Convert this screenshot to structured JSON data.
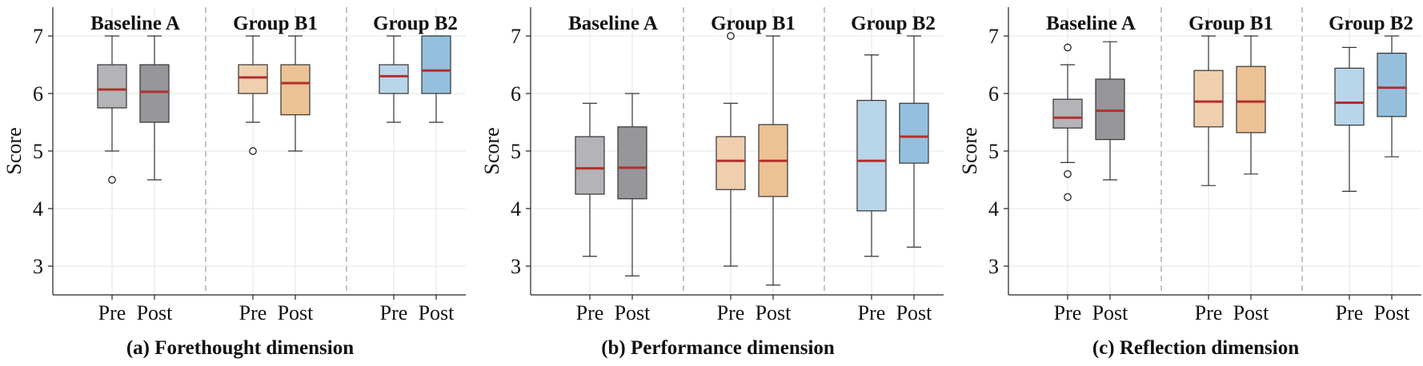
{
  "figure": {
    "subcaptions": [
      "(a) Forethought dimension",
      "(b) Performance dimension",
      "(c) Reflection dimension"
    ]
  },
  "colors": {
    "baseline_pre": "#b3b3b8",
    "baseline_post": "#96969b",
    "b1_pre": "#efcfae",
    "b1_post": "#ecc294",
    "b2_pre": "#b9d5ea",
    "b2_post": "#94c0de",
    "median": "#b2302c",
    "box_edge": "#333333",
    "divider": "#b5b5b5",
    "grid": "#e6e6e6"
  },
  "chart_data": [
    {
      "type": "box",
      "title": "(a) Forethought dimension",
      "ylabel": "Score",
      "ylim": [
        2.5,
        7.5
      ],
      "yticks": [
        3,
        4,
        5,
        6,
        7
      ],
      "grid": true,
      "groups": [
        "Baseline A",
        "Group B1",
        "Group B2"
      ],
      "categories": [
        "Pre",
        "Post"
      ],
      "boxes": [
        {
          "group": "Baseline A",
          "label": "Pre",
          "whislo": 5.0,
          "q1": 5.75,
          "med": 6.07,
          "q3": 6.5,
          "whishi": 7.0,
          "fliers": [
            4.5
          ]
        },
        {
          "group": "Baseline A",
          "label": "Post",
          "whislo": 4.5,
          "q1": 5.5,
          "med": 6.03,
          "q3": 6.5,
          "whishi": 7.0,
          "fliers": []
        },
        {
          "group": "Group B1",
          "label": "Pre",
          "whislo": 5.5,
          "q1": 6.0,
          "med": 6.28,
          "q3": 6.5,
          "whishi": 7.0,
          "fliers": [
            5.0
          ]
        },
        {
          "group": "Group B1",
          "label": "Post",
          "whislo": 5.0,
          "q1": 5.63,
          "med": 6.18,
          "q3": 6.5,
          "whishi": 7.0,
          "fliers": []
        },
        {
          "group": "Group B2",
          "label": "Pre",
          "whislo": 5.5,
          "q1": 6.0,
          "med": 6.3,
          "q3": 6.5,
          "whishi": 7.0,
          "fliers": []
        },
        {
          "group": "Group B2",
          "label": "Post",
          "whislo": 5.5,
          "q1": 6.0,
          "med": 6.4,
          "q3": 7.0,
          "whishi": 7.0,
          "fliers": []
        }
      ]
    },
    {
      "type": "box",
      "title": "(b) Performance dimension",
      "ylabel": "Score",
      "ylim": [
        2.5,
        7.5
      ],
      "yticks": [
        3,
        4,
        5,
        6,
        7
      ],
      "grid": true,
      "groups": [
        "Baseline A",
        "Group B1",
        "Group B2"
      ],
      "categories": [
        "Pre",
        "Post"
      ],
      "boxes": [
        {
          "group": "Baseline A",
          "label": "Pre",
          "whislo": 3.17,
          "q1": 4.25,
          "med": 4.7,
          "q3": 5.25,
          "whishi": 5.83,
          "fliers": []
        },
        {
          "group": "Baseline A",
          "label": "Post",
          "whislo": 2.83,
          "q1": 4.17,
          "med": 4.71,
          "q3": 5.42,
          "whishi": 6.0,
          "fliers": []
        },
        {
          "group": "Group B1",
          "label": "Pre",
          "whislo": 3.0,
          "q1": 4.33,
          "med": 4.83,
          "q3": 5.25,
          "whishi": 5.83,
          "fliers": [
            7.0
          ]
        },
        {
          "group": "Group B1",
          "label": "Post",
          "whislo": 2.67,
          "q1": 4.21,
          "med": 4.83,
          "q3": 5.46,
          "whishi": 7.0,
          "fliers": []
        },
        {
          "group": "Group B2",
          "label": "Pre",
          "whislo": 3.17,
          "q1": 3.96,
          "med": 4.83,
          "q3": 5.88,
          "whishi": 6.67,
          "fliers": []
        },
        {
          "group": "Group B2",
          "label": "Post",
          "whislo": 3.33,
          "q1": 4.79,
          "med": 5.25,
          "q3": 5.83,
          "whishi": 7.0,
          "fliers": []
        }
      ]
    },
    {
      "type": "box",
      "title": "(c) Reflection dimension",
      "ylabel": "Score",
      "ylim": [
        2.5,
        7.5
      ],
      "yticks": [
        3,
        4,
        5,
        6,
        7
      ],
      "grid": true,
      "groups": [
        "Baseline A",
        "Group B1",
        "Group B2"
      ],
      "categories": [
        "Pre",
        "Post"
      ],
      "boxes": [
        {
          "group": "Baseline A",
          "label": "Pre",
          "whislo": 4.8,
          "q1": 5.4,
          "med": 5.58,
          "q3": 5.9,
          "whishi": 6.5,
          "fliers": [
            6.8,
            4.6,
            4.2
          ]
        },
        {
          "group": "Baseline A",
          "label": "Post",
          "whislo": 4.5,
          "q1": 5.2,
          "med": 5.7,
          "q3": 6.25,
          "whishi": 6.9,
          "fliers": []
        },
        {
          "group": "Group B1",
          "label": "Pre",
          "whislo": 4.4,
          "q1": 5.42,
          "med": 5.86,
          "q3": 6.4,
          "whishi": 7.0,
          "fliers": []
        },
        {
          "group": "Group B1",
          "label": "Post",
          "whislo": 4.6,
          "q1": 5.32,
          "med": 5.86,
          "q3": 6.47,
          "whishi": 7.0,
          "fliers": []
        },
        {
          "group": "Group B2",
          "label": "Pre",
          "whislo": 4.3,
          "q1": 5.45,
          "med": 5.84,
          "q3": 6.44,
          "whishi": 6.8,
          "fliers": []
        },
        {
          "group": "Group B2",
          "label": "Post",
          "whislo": 4.9,
          "q1": 5.6,
          "med": 6.1,
          "q3": 6.7,
          "whishi": 7.0,
          "fliers": []
        }
      ]
    }
  ]
}
